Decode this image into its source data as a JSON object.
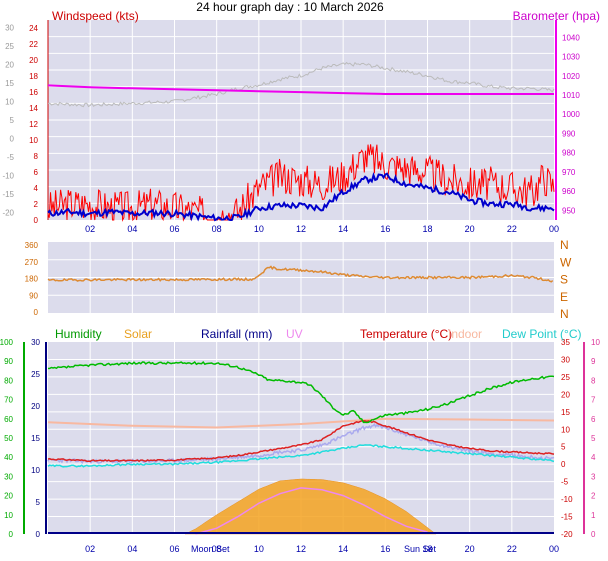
{
  "title": "24 hour graph day : 10 March 2026",
  "colors": {
    "panel": "#dcdcec",
    "grid": "#ffffff",
    "wind": "#ff0000",
    "gust_avg": "#0000cc",
    "baro": "#ee00ee",
    "temp_ghost": "#bbbbbb",
    "dir": "#dd8a33",
    "humidity": "#00bb00",
    "solar": "#f4a321",
    "rain": "#000088",
    "uv": "#ee88ee",
    "temp": "#dd2222",
    "indoor": "#f8b8a0",
    "dewpoint": "#22dddd",
    "apparent": "#aaaaee",
    "rain_axis": "#000080",
    "humid_axis": "#00aa00",
    "uv_axis": "#ff66bb"
  },
  "wind_chart": {
    "left_label": "Windspeed (kts)",
    "right_label": "Barometer (hpa)",
    "left_ticks": [
      "24",
      "22",
      "20",
      "18",
      "16",
      "14",
      "12",
      "10",
      "8",
      "6",
      "4",
      "2",
      "0"
    ],
    "right_ticks": [
      "1040",
      "1030",
      "1020",
      "1010",
      "1000",
      "990",
      "980",
      "970",
      "960",
      "950"
    ],
    "ghost_ticks": [
      "30",
      "25",
      "20",
      "15",
      "10",
      "5",
      "0",
      "-5",
      "-10",
      "-15",
      "-20"
    ],
    "x_ticks": [
      "02",
      "04",
      "06",
      "08",
      "10",
      "12",
      "14",
      "16",
      "18",
      "20",
      "22",
      "00"
    ]
  },
  "dir_chart": {
    "left_ticks": [
      "360",
      "270",
      "180",
      "90",
      "0"
    ],
    "right_ticks": [
      "N",
      "W",
      "S",
      "E",
      "N"
    ],
    "x_ticks": [
      "02",
      "04",
      "06",
      "08",
      "10",
      "12",
      "14",
      "16",
      "18",
      "20",
      "22",
      "00"
    ]
  },
  "multi_chart": {
    "legend": {
      "humidity": "Humidity",
      "solar": "Solar",
      "rainfall": "Rainfall (mm)",
      "uv": "UV",
      "temperature": "Temperature (°C)",
      "indoor": "Indoor",
      "dewpoint": "Dew Point (°C)"
    },
    "humid_ticks": [
      "100",
      "90",
      "80",
      "70",
      "60",
      "50",
      "40",
      "30",
      "20",
      "10",
      "0"
    ],
    "rain_ticks": [
      "30",
      "25",
      "20",
      "15",
      "10",
      "5",
      "0"
    ],
    "temp_ticks": [
      "35",
      "30",
      "25",
      "20",
      "15",
      "10",
      "5",
      "0",
      "-5",
      "-10",
      "-15",
      "-20"
    ],
    "uv_ticks": [
      "10",
      "9",
      "8",
      "7",
      "6",
      "5",
      "4",
      "3",
      "2",
      "1",
      "0"
    ],
    "x_ticks": [
      "02",
      "04",
      "06",
      "08",
      "10",
      "12",
      "14",
      "16",
      "18",
      "20",
      "22",
      "00"
    ],
    "moon_label": "Moon Set",
    "sun_label": "Sun Set"
  },
  "chart_data": [
    {
      "type": "line",
      "title": "24 hour graph day : 10 March 2026",
      "x_unit": "hour",
      "x_range": [
        0,
        24
      ],
      "series": [
        {
          "name": "Windspeed (kts)",
          "axis": "left",
          "ylim": [
            0,
            25
          ],
          "x": [
            0,
            1,
            2,
            3,
            4,
            5,
            6,
            7,
            8,
            9,
            10,
            11,
            12,
            13,
            14,
            15,
            15.5,
            16,
            17,
            18,
            19,
            20,
            21,
            22,
            23,
            23.5,
            24
          ],
          "values": [
            1.5,
            2,
            2,
            1.5,
            1.5,
            2,
            1.5,
            1,
            0.5,
            1,
            4,
            5.5,
            5,
            4.5,
            5.5,
            8,
            7.5,
            7,
            6.5,
            6,
            5,
            4.5,
            4.5,
            4,
            3.5,
            5.5,
            4
          ]
        },
        {
          "name": "Barometer (hpa)",
          "axis": "right",
          "ylim": [
            945,
            1049
          ],
          "x": [
            0,
            2,
            4,
            6,
            8,
            10,
            12,
            14,
            16,
            18,
            20,
            22,
            24
          ],
          "values": [
            1015,
            1014,
            1013.5,
            1013,
            1012.5,
            1012,
            1011.5,
            1011,
            1010.5,
            1010.5,
            1010.5,
            1010.5,
            1010.5
          ]
        },
        {
          "name": "Temperature",
          "axis": "ghost",
          "ylim": [
            -22,
            32
          ],
          "x": [
            0,
            2,
            4,
            6,
            7,
            8,
            9,
            10,
            11,
            12,
            13,
            14,
            15,
            16,
            17,
            18,
            19,
            20,
            21,
            22,
            23,
            24
          ],
          "values": [
            9.5,
            9,
            9.5,
            10,
            11,
            12,
            13.5,
            14.5,
            16,
            17,
            19,
            20,
            20,
            19,
            18,
            17,
            15.5,
            15,
            14,
            13.5,
            13.5,
            13
          ]
        },
        {
          "name": "Average windspeed",
          "axis": "left",
          "ylim": [
            0,
            25
          ],
          "x": [
            0,
            1,
            2,
            3,
            4,
            5,
            6,
            7,
            8,
            9,
            10,
            11,
            12,
            13,
            14,
            15,
            16,
            17,
            18,
            19,
            20,
            21,
            22,
            23,
            24
          ],
          "values": [
            0.8,
            1,
            0.8,
            1,
            0.8,
            0.9,
            0.8,
            0.5,
            0.2,
            0.3,
            1.5,
            1.8,
            1.8,
            1.5,
            3.5,
            5,
            5.5,
            4.5,
            4,
            3.5,
            2.5,
            2,
            2,
            1.5,
            1.5
          ]
        }
      ]
    },
    {
      "type": "line",
      "x_unit": "hour",
      "x_range": [
        0,
        24
      ],
      "series": [
        {
          "name": "Wind direction",
          "ylim": [
            0,
            360
          ],
          "x": [
            0,
            2,
            4,
            6,
            8,
            9.8,
            10,
            10.5,
            11,
            12,
            13,
            14,
            15,
            16,
            17,
            18,
            19,
            20,
            21,
            22,
            23,
            24
          ],
          "values": [
            165,
            168,
            168,
            168,
            170,
            170,
            195,
            235,
            225,
            220,
            210,
            195,
            185,
            180,
            180,
            180,
            180,
            180,
            185,
            190,
            180,
            160
          ]
        }
      ]
    },
    {
      "type": "line",
      "x_unit": "hour",
      "x_range": [
        0,
        24
      ],
      "series": [
        {
          "name": "Humidity",
          "axis": "humid",
          "ylim": [
            0,
            100
          ],
          "x": [
            0,
            1,
            2,
            4,
            6,
            8,
            9,
            10,
            10.5,
            11,
            12,
            12.5,
            13,
            13.5,
            14,
            14.5,
            15,
            15.5,
            16,
            17,
            18,
            19,
            20,
            21,
            22,
            23,
            24
          ],
          "values": [
            86,
            87,
            88,
            89,
            89,
            89,
            87,
            83,
            80,
            80,
            79,
            77,
            72,
            66,
            62,
            64,
            58,
            60,
            62,
            63,
            65,
            68,
            72,
            76,
            79,
            81,
            82
          ]
        },
        {
          "name": "Temperature",
          "axis": "temp",
          "ylim": [
            -20,
            35
          ],
          "x": [
            0,
            2,
            4,
            6,
            8,
            9,
            10,
            11,
            12,
            13,
            13.5,
            14,
            15,
            15.5,
            16,
            17,
            18,
            19,
            20,
            21,
            22,
            23,
            24
          ],
          "values": [
            1.5,
            1,
            1,
            1.2,
            1.8,
            2.5,
            3.5,
            4.5,
            5.5,
            7,
            9,
            11,
            12.5,
            12,
            11,
            9,
            7,
            5.5,
            4.5,
            3.8,
            3.5,
            3.2,
            3
          ]
        },
        {
          "name": "Indoor",
          "axis": "temp",
          "ylim": [
            -20,
            35
          ],
          "x": [
            0,
            4,
            8,
            12,
            16,
            20,
            24
          ],
          "values": [
            12,
            11,
            10.5,
            11.5,
            13,
            12.8,
            12.5
          ]
        },
        {
          "name": "Dew Point (°C)",
          "axis": "temp",
          "ylim": [
            -20,
            35
          ],
          "x": [
            0,
            2,
            4,
            6,
            8,
            10,
            12,
            14,
            15,
            16,
            18,
            20,
            22,
            24
          ],
          "values": [
            -0.5,
            -0.5,
            0,
            0,
            0.5,
            1.5,
            2.5,
            4.5,
            5.5,
            5,
            4,
            3,
            2,
            1
          ]
        },
        {
          "name": "Apparent",
          "axis": "temp",
          "ylim": [
            -20,
            35
          ],
          "x": [
            0,
            2,
            4,
            6,
            8,
            10,
            11,
            12,
            13,
            14,
            15,
            15.5,
            16,
            17,
            18,
            19,
            20,
            21,
            22,
            24
          ],
          "values": [
            1.2,
            0.8,
            0.8,
            1,
            1.5,
            2.5,
            3.5,
            4,
            5.5,
            8,
            10.5,
            11,
            10.5,
            8.5,
            6.5,
            5,
            3.8,
            3,
            2.5,
            1.5
          ]
        },
        {
          "name": "Solar",
          "axis": "rain",
          "ylim": [
            0,
            30
          ],
          "x": [
            6.5,
            7,
            8,
            9,
            10,
            11,
            12,
            13,
            14,
            15,
            16,
            17,
            18,
            18.4
          ],
          "values": [
            0,
            0.8,
            3,
            5,
            7,
            8.3,
            8.6,
            8.5,
            8,
            7,
            5.5,
            3.5,
            1,
            0
          ]
        },
        {
          "name": "UV",
          "axis": "uv",
          "ylim": [
            0,
            10
          ],
          "x": [
            7,
            8,
            9,
            10,
            11,
            12,
            13,
            14,
            15,
            16,
            17,
            18
          ],
          "values": [
            0,
            0.3,
            0.9,
            1.6,
            2.1,
            2.4,
            2.3,
            2,
            1.5,
            0.9,
            0.4,
            0.1
          ]
        },
        {
          "name": "Rainfall (mm)",
          "axis": "rain",
          "ylim": [
            0,
            30
          ],
          "x": [
            0,
            24
          ],
          "values": [
            0,
            0
          ]
        }
      ]
    }
  ]
}
